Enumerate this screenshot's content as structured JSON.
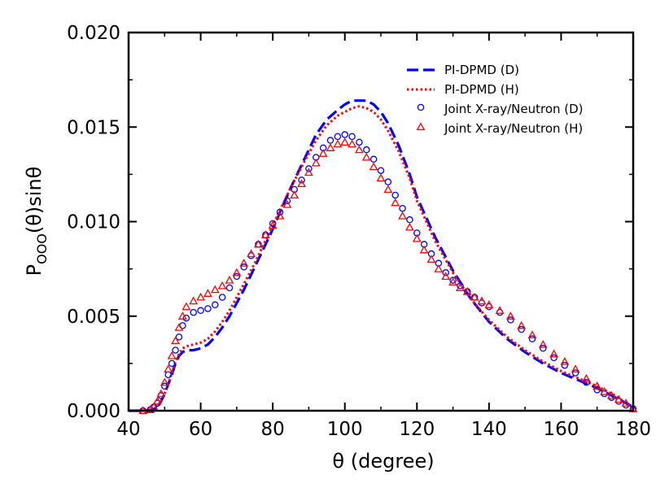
{
  "chart_data": {
    "type": "line",
    "title": "",
    "xlabel": "θ (degree)",
    "ylabel": {
      "main": "P",
      "subscript": "OOO",
      "suffix": "(θ)sinθ"
    },
    "xlim": [
      40,
      180
    ],
    "ylim": [
      0,
      0.02
    ],
    "xticks": [
      40,
      60,
      80,
      100,
      120,
      140,
      160,
      180
    ],
    "yticks": [
      0.0,
      0.005,
      0.01,
      0.015,
      0.02
    ],
    "ytick_labels": [
      "0.000",
      "0.005",
      "0.010",
      "0.015",
      "0.020"
    ],
    "grid": false,
    "legend_position": "top-right",
    "series": [
      {
        "name": "PI-DPMD (D)",
        "style": "dashed-line",
        "color": "#0000ff",
        "x": [
          40,
          44,
          46,
          47,
          48,
          49,
          50,
          51,
          52,
          53,
          54,
          55,
          56,
          58,
          60,
          62,
          64,
          66,
          68,
          70,
          72,
          75,
          78,
          80,
          82,
          85,
          88,
          90,
          92,
          95,
          98,
          100,
          102,
          104,
          106,
          108,
          110,
          112,
          115,
          118,
          120,
          125,
          130,
          135,
          140,
          145,
          150,
          155,
          160,
          165,
          170,
          175,
          178,
          180
        ],
        "y": [
          0.0,
          0.0,
          2e-05,
          8e-05,
          0.0002,
          0.0005,
          0.0009,
          0.0014,
          0.0019,
          0.0025,
          0.0029,
          0.0031,
          0.0032,
          0.0032,
          0.0033,
          0.0035,
          0.0039,
          0.0044,
          0.005,
          0.0057,
          0.0064,
          0.0076,
          0.0088,
          0.0096,
          0.0105,
          0.0118,
          0.013,
          0.0138,
          0.0146,
          0.0154,
          0.0159,
          0.0162,
          0.0164,
          0.0164,
          0.0164,
          0.0162,
          0.0158,
          0.0152,
          0.014,
          0.0125,
          0.0113,
          0.0092,
          0.0074,
          0.0059,
          0.0047,
          0.0038,
          0.0031,
          0.0025,
          0.002,
          0.0016,
          0.0012,
          0.0007,
          0.0004,
          0.0002
        ]
      },
      {
        "name": "PI-DPMD (H)",
        "style": "dotted-line",
        "color": "#ff0000",
        "x": [
          40,
          44,
          46,
          47,
          48,
          49,
          50,
          51,
          52,
          53,
          54,
          55,
          56,
          58,
          60,
          62,
          64,
          66,
          68,
          70,
          72,
          75,
          78,
          80,
          82,
          85,
          88,
          90,
          92,
          95,
          98,
          100,
          102,
          104,
          106,
          108,
          110,
          112,
          115,
          118,
          120,
          125,
          130,
          135,
          140,
          145,
          150,
          155,
          160,
          165,
          170,
          175,
          178,
          180
        ],
        "y": [
          0.0,
          0.0,
          2e-05,
          8e-05,
          0.0002,
          0.0005,
          0.0009,
          0.0014,
          0.002,
          0.0026,
          0.003,
          0.0033,
          0.0034,
          0.0035,
          0.0036,
          0.0038,
          0.0042,
          0.0047,
          0.0053,
          0.006,
          0.0067,
          0.0078,
          0.009,
          0.0098,
          0.0106,
          0.0118,
          0.0129,
          0.0136,
          0.0143,
          0.0151,
          0.0156,
          0.0158,
          0.016,
          0.0161,
          0.016,
          0.0158,
          0.0154,
          0.0148,
          0.0137,
          0.0123,
          0.0111,
          0.009,
          0.0073,
          0.0059,
          0.0048,
          0.0039,
          0.0032,
          0.0026,
          0.0021,
          0.0017,
          0.0013,
          0.0008,
          0.0004,
          0.0002
        ]
      },
      {
        "name": "Joint X-ray/Neutron (D)",
        "style": "open-circle",
        "color": "#0000ff",
        "x": [
          44,
          46,
          47,
          48,
          49,
          50,
          51,
          52,
          53,
          54,
          55,
          56,
          58,
          60,
          62,
          64,
          66,
          68,
          70,
          72,
          74,
          76,
          78,
          80,
          82,
          84,
          86,
          88,
          90,
          92,
          94,
          96,
          98,
          100,
          102,
          104,
          106,
          108,
          110,
          112,
          114,
          116,
          118,
          120,
          122,
          124,
          126,
          128,
          130,
          132,
          134,
          136,
          138,
          140,
          143,
          146,
          149,
          152,
          155,
          158,
          161,
          164,
          167,
          170,
          172,
          174,
          176,
          178,
          180
        ],
        "y": [
          0.0,
          5e-05,
          0.0002,
          0.0004,
          0.0008,
          0.0013,
          0.0019,
          0.0025,
          0.0032,
          0.0039,
          0.0045,
          0.0049,
          0.0052,
          0.0053,
          0.0054,
          0.0056,
          0.006,
          0.0065,
          0.0071,
          0.0076,
          0.0082,
          0.0088,
          0.0093,
          0.0099,
          0.0105,
          0.0111,
          0.0117,
          0.0122,
          0.0128,
          0.0134,
          0.0139,
          0.0143,
          0.0145,
          0.0146,
          0.0145,
          0.0142,
          0.0138,
          0.0133,
          0.0127,
          0.0121,
          0.0114,
          0.0107,
          0.0101,
          0.0094,
          0.0088,
          0.0083,
          0.0078,
          0.0073,
          0.0069,
          0.0066,
          0.0063,
          0.006,
          0.0057,
          0.0055,
          0.0052,
          0.0048,
          0.0043,
          0.0038,
          0.0033,
          0.0028,
          0.0024,
          0.002,
          0.0015,
          0.0011,
          0.0009,
          0.0007,
          0.0005,
          0.0003,
          0.0001
        ]
      },
      {
        "name": "Joint X-ray/Neutron (H)",
        "style": "open-triangle",
        "color": "#ff0000",
        "x": [
          44,
          46,
          47,
          48,
          49,
          50,
          51,
          52,
          53,
          54,
          55,
          56,
          58,
          60,
          62,
          64,
          66,
          68,
          70,
          72,
          74,
          76,
          78,
          80,
          82,
          84,
          86,
          88,
          90,
          92,
          94,
          96,
          98,
          100,
          102,
          104,
          106,
          108,
          110,
          112,
          114,
          116,
          118,
          120,
          122,
          124,
          126,
          128,
          130,
          132,
          134,
          136,
          138,
          140,
          143,
          146,
          149,
          152,
          155,
          158,
          161,
          164,
          167,
          170,
          172,
          174,
          176,
          178,
          180
        ],
        "y": [
          0.0,
          5e-05,
          0.0002,
          0.0005,
          0.0009,
          0.0015,
          0.0022,
          0.0029,
          0.0037,
          0.0044,
          0.005,
          0.0055,
          0.0058,
          0.006,
          0.0062,
          0.0064,
          0.0066,
          0.0069,
          0.0073,
          0.0078,
          0.0083,
          0.0088,
          0.0093,
          0.0098,
          0.0103,
          0.0109,
          0.0114,
          0.012,
          0.0126,
          0.0131,
          0.0136,
          0.0139,
          0.0141,
          0.0142,
          0.0141,
          0.0138,
          0.0134,
          0.0129,
          0.0123,
          0.0117,
          0.011,
          0.0103,
          0.0097,
          0.0091,
          0.0085,
          0.008,
          0.0075,
          0.0071,
          0.0068,
          0.0065,
          0.0063,
          0.006,
          0.0058,
          0.0056,
          0.0053,
          0.005,
          0.0045,
          0.004,
          0.0035,
          0.003,
          0.0026,
          0.0022,
          0.0017,
          0.0013,
          0.001,
          0.0008,
          0.0006,
          0.0004,
          0.0001
        ]
      }
    ]
  }
}
